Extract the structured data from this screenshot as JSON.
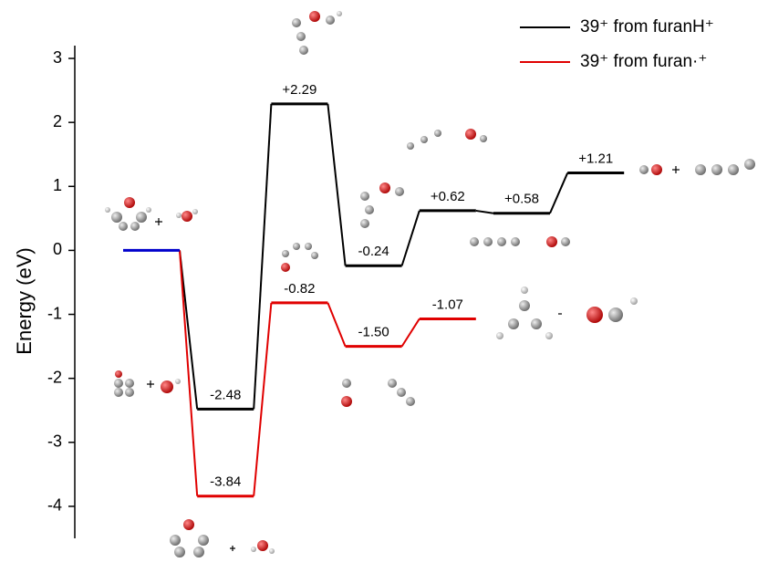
{
  "chart_data": {
    "type": "energy-profile",
    "y_label": "Energy (eV)",
    "ylim": [
      -4.5,
      3.2
    ],
    "yticks": [
      -4,
      -3,
      -2,
      -1,
      0,
      1,
      2,
      3
    ],
    "start": {
      "value": 0,
      "color": "#0000cc"
    },
    "series": [
      {
        "name": "39⁺ from furanH⁺",
        "color": "#000000",
        "values": [
          null,
          -2.48,
          2.29,
          -0.24,
          0.62,
          0.58,
          1.21
        ],
        "value_labels": [
          null,
          "-2.48",
          "+2.29",
          "-0.24",
          "+0.62",
          "+0.58",
          "+1.21"
        ]
      },
      {
        "name": "39⁺ from furan·⁺",
        "color": "#e00000",
        "values": [
          null,
          -3.84,
          -0.82,
          -1.5,
          -1.07,
          null,
          null
        ],
        "value_labels": [
          null,
          "-3.84",
          "-0.82",
          "-1.50",
          "-1.07",
          null,
          null
        ]
      }
    ]
  }
}
